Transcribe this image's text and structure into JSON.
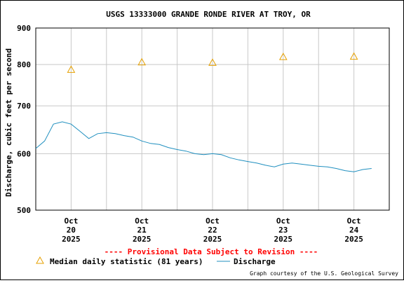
{
  "chart_data": {
    "type": "line",
    "title": "USGS 13333000 GRANDE RONDE RIVER AT TROY, OR",
    "ylabel": "Discharge, cubic feet per second",
    "y_scale": "log",
    "ylim": [
      500,
      900
    ],
    "yticks": [
      {
        "value": 500,
        "label": "500"
      },
      {
        "value": 600,
        "label": "600"
      },
      {
        "value": 700,
        "label": "700"
      },
      {
        "value": 800,
        "label": "800"
      },
      {
        "value": 900,
        "label": "900"
      }
    ],
    "xlim": [
      "2025-10-19T12:00",
      "2025-10-24T12:00"
    ],
    "xticks": [
      {
        "value": "2025-10-20T00:00",
        "line1": "Oct",
        "line2": "20",
        "line3": "2025"
      },
      {
        "value": "2025-10-21T00:00",
        "line1": "Oct",
        "line2": "21",
        "line3": "2025"
      },
      {
        "value": "2025-10-22T00:00",
        "line1": "Oct",
        "line2": "22",
        "line3": "2025"
      },
      {
        "value": "2025-10-23T00:00",
        "line1": "Oct",
        "line2": "23",
        "line3": "2025"
      },
      {
        "value": "2025-10-24T00:00",
        "line1": "Oct",
        "line2": "24",
        "line3": "2025"
      }
    ],
    "grid": true,
    "series": [
      {
        "name": "Median daily statistic (81 years)",
        "marker": "triangle",
        "color": "#e6a000",
        "points": [
          {
            "x": "2025-10-20T00:00",
            "y": 787
          },
          {
            "x": "2025-10-21T00:00",
            "y": 806
          },
          {
            "x": "2025-10-22T00:00",
            "y": 805
          },
          {
            "x": "2025-10-23T00:00",
            "y": 820
          },
          {
            "x": "2025-10-24T00:00",
            "y": 821
          }
        ]
      },
      {
        "name": "Discharge",
        "color": "#1f8fbf",
        "points": [
          {
            "x": "2025-10-19T12:00",
            "y": 610
          },
          {
            "x": "2025-10-19T15:00",
            "y": 625
          },
          {
            "x": "2025-10-19T18:00",
            "y": 660
          },
          {
            "x": "2025-10-19T21:00",
            "y": 665
          },
          {
            "x": "2025-10-20T00:00",
            "y": 660
          },
          {
            "x": "2025-10-20T03:00",
            "y": 645
          },
          {
            "x": "2025-10-20T06:00",
            "y": 630
          },
          {
            "x": "2025-10-20T09:00",
            "y": 640
          },
          {
            "x": "2025-10-20T12:00",
            "y": 642
          },
          {
            "x": "2025-10-20T15:00",
            "y": 640
          },
          {
            "x": "2025-10-20T18:00",
            "y": 636
          },
          {
            "x": "2025-10-20T21:00",
            "y": 633
          },
          {
            "x": "2025-10-21T00:00",
            "y": 625
          },
          {
            "x": "2025-10-21T03:00",
            "y": 620
          },
          {
            "x": "2025-10-21T06:00",
            "y": 618
          },
          {
            "x": "2025-10-21T09:00",
            "y": 612
          },
          {
            "x": "2025-10-21T12:00",
            "y": 608
          },
          {
            "x": "2025-10-21T15:00",
            "y": 605
          },
          {
            "x": "2025-10-21T18:00",
            "y": 600
          },
          {
            "x": "2025-10-21T21:00",
            "y": 598
          },
          {
            "x": "2025-10-22T00:00",
            "y": 600
          },
          {
            "x": "2025-10-22T03:00",
            "y": 598
          },
          {
            "x": "2025-10-22T06:00",
            "y": 592
          },
          {
            "x": "2025-10-22T09:00",
            "y": 588
          },
          {
            "x": "2025-10-22T12:00",
            "y": 585
          },
          {
            "x": "2025-10-22T15:00",
            "y": 582
          },
          {
            "x": "2025-10-22T18:00",
            "y": 578
          },
          {
            "x": "2025-10-22T21:00",
            "y": 575
          },
          {
            "x": "2025-10-23T00:00",
            "y": 580
          },
          {
            "x": "2025-10-23T03:00",
            "y": 582
          },
          {
            "x": "2025-10-23T06:00",
            "y": 580
          },
          {
            "x": "2025-10-23T09:00",
            "y": 578
          },
          {
            "x": "2025-10-23T12:00",
            "y": 576
          },
          {
            "x": "2025-10-23T15:00",
            "y": 575
          },
          {
            "x": "2025-10-23T18:00",
            "y": 572
          },
          {
            "x": "2025-10-23T21:00",
            "y": 568
          },
          {
            "x": "2025-10-24T00:00",
            "y": 566
          },
          {
            "x": "2025-10-24T03:00",
            "y": 570
          },
          {
            "x": "2025-10-24T06:00",
            "y": 572
          }
        ]
      }
    ],
    "legend_position": "bottom-left"
  },
  "provisional_text": "---- Provisional Data Subject to Revision ----",
  "legend": {
    "median_label": "Median daily statistic (81 years)",
    "discharge_label": "Discharge"
  },
  "credit": "Graph courtesy of the U.S. Geological Survey",
  "colors": {
    "provisional": "#ff0000",
    "grid": "#c8c8c8",
    "discharge": "#1f8fbf",
    "median": "#e6a000"
  }
}
